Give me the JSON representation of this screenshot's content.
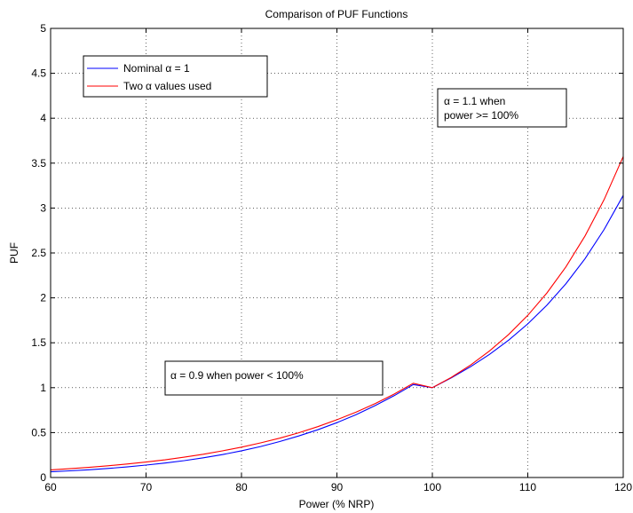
{
  "chart_data": {
    "type": "line",
    "title": "Comparison of PUF Functions",
    "xlabel": "Power (% NRP)",
    "ylabel": "PUF",
    "xlim": [
      60,
      120
    ],
    "ylim": [
      0,
      5
    ],
    "x_ticks": [
      "60",
      "70",
      "80",
      "90",
      "100",
      "110",
      "120"
    ],
    "y_ticks": [
      "0",
      "0.5",
      "1",
      "1.5",
      "2",
      "2.5",
      "3",
      "3.5",
      "4",
      "4.5",
      "5"
    ],
    "grid": true,
    "legend": {
      "placement": "top-left",
      "entries": [
        {
          "prefix": "Nominal ",
          "symbol": "α",
          "suffix": " = 1",
          "color": "#0000ff"
        },
        {
          "prefix": "Two",
          "symbol": "α",
          "suffix": " values used",
          "color": "#ff0000"
        }
      ]
    },
    "annotations": [
      {
        "lines": [
          "α = 1.1 when",
          "power >= 100%"
        ]
      },
      {
        "lines": [
          "α = 0.9 when power < 100%"
        ]
      }
    ],
    "series": [
      {
        "name": "Nominal α = 1",
        "color": "#0000ff",
        "x": [
          60,
          62,
          64,
          66,
          68,
          70,
          72,
          74,
          76,
          78,
          80,
          82,
          84,
          86,
          88,
          90,
          92,
          94,
          96,
          98,
          100,
          102,
          104,
          106,
          108,
          110,
          112,
          114,
          116,
          118,
          120
        ],
        "y": [
          0.063,
          0.074,
          0.086,
          0.101,
          0.118,
          0.138,
          0.161,
          0.188,
          0.219,
          0.255,
          0.297,
          0.345,
          0.4,
          0.462,
          0.532,
          0.611,
          0.7,
          0.8,
          0.911,
          1.035,
          1.0,
          1.111,
          1.233,
          1.372,
          1.53,
          1.71,
          1.918,
          2.158,
          2.437,
          2.762,
          3.14
        ]
      },
      {
        "name": "Two α values used",
        "color": "#ff0000",
        "x": [
          60,
          62,
          64,
          66,
          68,
          70,
          72,
          74,
          76,
          78,
          80,
          82,
          84,
          86,
          88,
          90,
          92,
          94,
          96,
          98,
          100,
          102,
          104,
          106,
          108,
          110,
          112,
          114,
          116,
          118,
          120
        ],
        "y": [
          0.085,
          0.098,
          0.113,
          0.13,
          0.15,
          0.172,
          0.197,
          0.226,
          0.259,
          0.296,
          0.338,
          0.385,
          0.438,
          0.498,
          0.566,
          0.643,
          0.727,
          0.822,
          0.929,
          1.049,
          1.0,
          1.116,
          1.252,
          1.41,
          1.593,
          1.805,
          2.054,
          2.346,
          2.69,
          3.095,
          3.574
        ]
      }
    ]
  }
}
